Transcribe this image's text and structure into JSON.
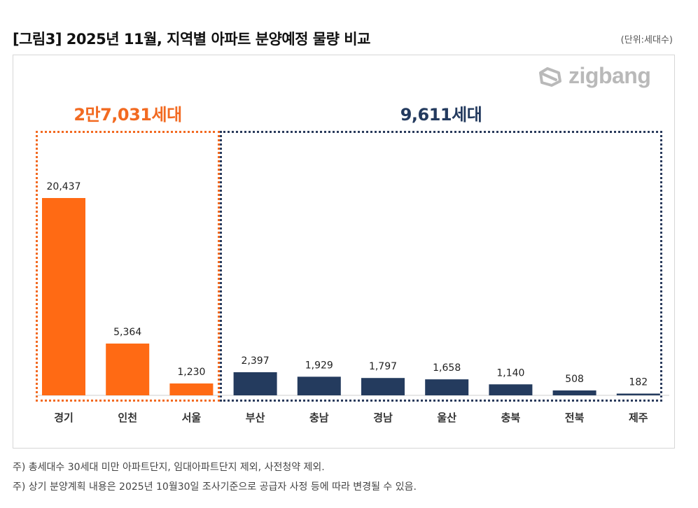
{
  "title": "[그림3] 2025년 11월, 지역별 아파트 분양예정 물량 비교",
  "unit_label": "(단위:세대수)",
  "logo": {
    "text": "zigbang",
    "icon": "zigbang-logo-icon",
    "color": "#b9b9b9"
  },
  "groups": [
    {
      "label": "2만7,031세대",
      "color": "#f26a21"
    },
    {
      "label": "9,611세대",
      "color": "#2a3b5c"
    }
  ],
  "chart_data": {
    "type": "bar",
    "title": "2025년 11월, 지역별 아파트 분양예정 물량 비교",
    "xlabel": "",
    "ylabel": "세대수",
    "ylim": [
      0,
      21000
    ],
    "categories": [
      "경기",
      "인천",
      "서울",
      "부산",
      "충남",
      "경남",
      "울산",
      "충북",
      "전북",
      "제주"
    ],
    "values": [
      20437,
      5364,
      1230,
      2397,
      1929,
      1797,
      1658,
      1140,
      508,
      182
    ],
    "value_labels": [
      "20,437",
      "5,364",
      "1,230",
      "2,397",
      "1,929",
      "1,797",
      "1,658",
      "1,140",
      "508",
      "182"
    ],
    "colors": [
      "#ff6a14",
      "#ff6a14",
      "#ff6a14",
      "#243b5e",
      "#243b5e",
      "#243b5e",
      "#243b5e",
      "#243b5e",
      "#243b5e",
      "#243b5e"
    ],
    "grid": false
  },
  "notes": [
    "주) 총세대수 30세대 미만 아파트단지, 임대아파트단지 제외, 사전청약 제외.",
    "주) 상기 분양계획 내용은 2025년 10월30일 조사기준으로 공급자 사정 등에 따라 변경될 수 있음."
  ]
}
